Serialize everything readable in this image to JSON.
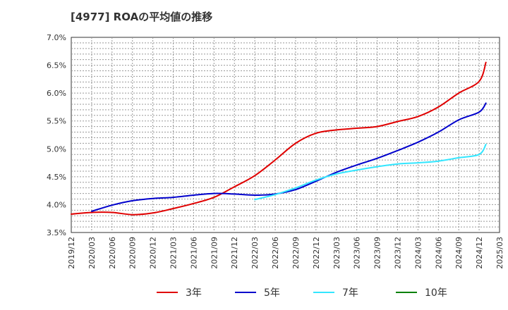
{
  "title": "[4977]  ROAの平均値の推移",
  "chart_data": {
    "type": "line",
    "title": "[4977]  ROAの平均値の推移",
    "xlabel": "",
    "ylabel": "",
    "ylim": [
      3.5,
      7.0
    ],
    "y_ticks": [
      "3.5%",
      "4.0%",
      "4.5%",
      "5.0%",
      "5.5%",
      "6.0%",
      "6.5%",
      "7.0%"
    ],
    "x_ticks": [
      "2019/12",
      "2020/03",
      "2020/06",
      "2020/09",
      "2020/12",
      "2021/03",
      "2021/06",
      "2021/09",
      "2021/12",
      "2022/03",
      "2022/06",
      "2022/09",
      "2022/12",
      "2023/03",
      "2023/06",
      "2023/09",
      "2023/12",
      "2024/03",
      "2024/06",
      "2024/09",
      "2024/12",
      "2025/03"
    ],
    "grid": true,
    "legend_position": "bottom",
    "series": [
      {
        "name": "3年",
        "color": "#e00000",
        "values": [
          [
            "2019/12",
            3.83
          ],
          [
            "2020/03",
            3.86
          ],
          [
            "2020/06",
            3.86
          ],
          [
            "2020/09",
            3.82
          ],
          [
            "2020/12",
            3.85
          ],
          [
            "2021/03",
            3.93
          ],
          [
            "2021/06",
            4.02
          ],
          [
            "2021/09",
            4.13
          ],
          [
            "2021/12",
            4.32
          ],
          [
            "2022/03",
            4.52
          ],
          [
            "2022/06",
            4.8
          ],
          [
            "2022/09",
            5.1
          ],
          [
            "2022/12",
            5.28
          ],
          [
            "2023/03",
            5.34
          ],
          [
            "2023/06",
            5.37
          ],
          [
            "2023/09",
            5.4
          ],
          [
            "2023/12",
            5.49
          ],
          [
            "2024/03",
            5.58
          ],
          [
            "2024/06",
            5.75
          ],
          [
            "2024/09",
            6.0
          ],
          [
            "2024/12",
            6.21
          ],
          [
            "2025/01",
            6.55
          ]
        ]
      },
      {
        "name": "5年",
        "color": "#0000cc",
        "values": [
          [
            "2020/03",
            3.88
          ],
          [
            "2020/06",
            3.99
          ],
          [
            "2020/09",
            4.07
          ],
          [
            "2020/12",
            4.11
          ],
          [
            "2021/03",
            4.13
          ],
          [
            "2021/06",
            4.17
          ],
          [
            "2021/09",
            4.2
          ],
          [
            "2021/12",
            4.19
          ],
          [
            "2022/03",
            4.17
          ],
          [
            "2022/06",
            4.19
          ],
          [
            "2022/09",
            4.27
          ],
          [
            "2022/12",
            4.42
          ],
          [
            "2023/03",
            4.58
          ],
          [
            "2023/06",
            4.71
          ],
          [
            "2023/09",
            4.83
          ],
          [
            "2023/12",
            4.97
          ],
          [
            "2024/03",
            5.12
          ],
          [
            "2024/06",
            5.3
          ],
          [
            "2024/09",
            5.52
          ],
          [
            "2024/12",
            5.66
          ],
          [
            "2025/01",
            5.82
          ]
        ]
      },
      {
        "name": "7年",
        "color": "#33e6ff",
        "values": [
          [
            "2022/03",
            4.09
          ],
          [
            "2022/06",
            4.18
          ],
          [
            "2022/09",
            4.3
          ],
          [
            "2022/12",
            4.44
          ],
          [
            "2023/03",
            4.55
          ],
          [
            "2023/06",
            4.62
          ],
          [
            "2023/09",
            4.68
          ],
          [
            "2023/12",
            4.73
          ],
          [
            "2024/03",
            4.75
          ],
          [
            "2024/06",
            4.78
          ],
          [
            "2024/09",
            4.84
          ],
          [
            "2024/12",
            4.9
          ],
          [
            "2025/01",
            5.08
          ]
        ]
      },
      {
        "name": "10年",
        "color": "#008000",
        "values": []
      }
    ]
  }
}
